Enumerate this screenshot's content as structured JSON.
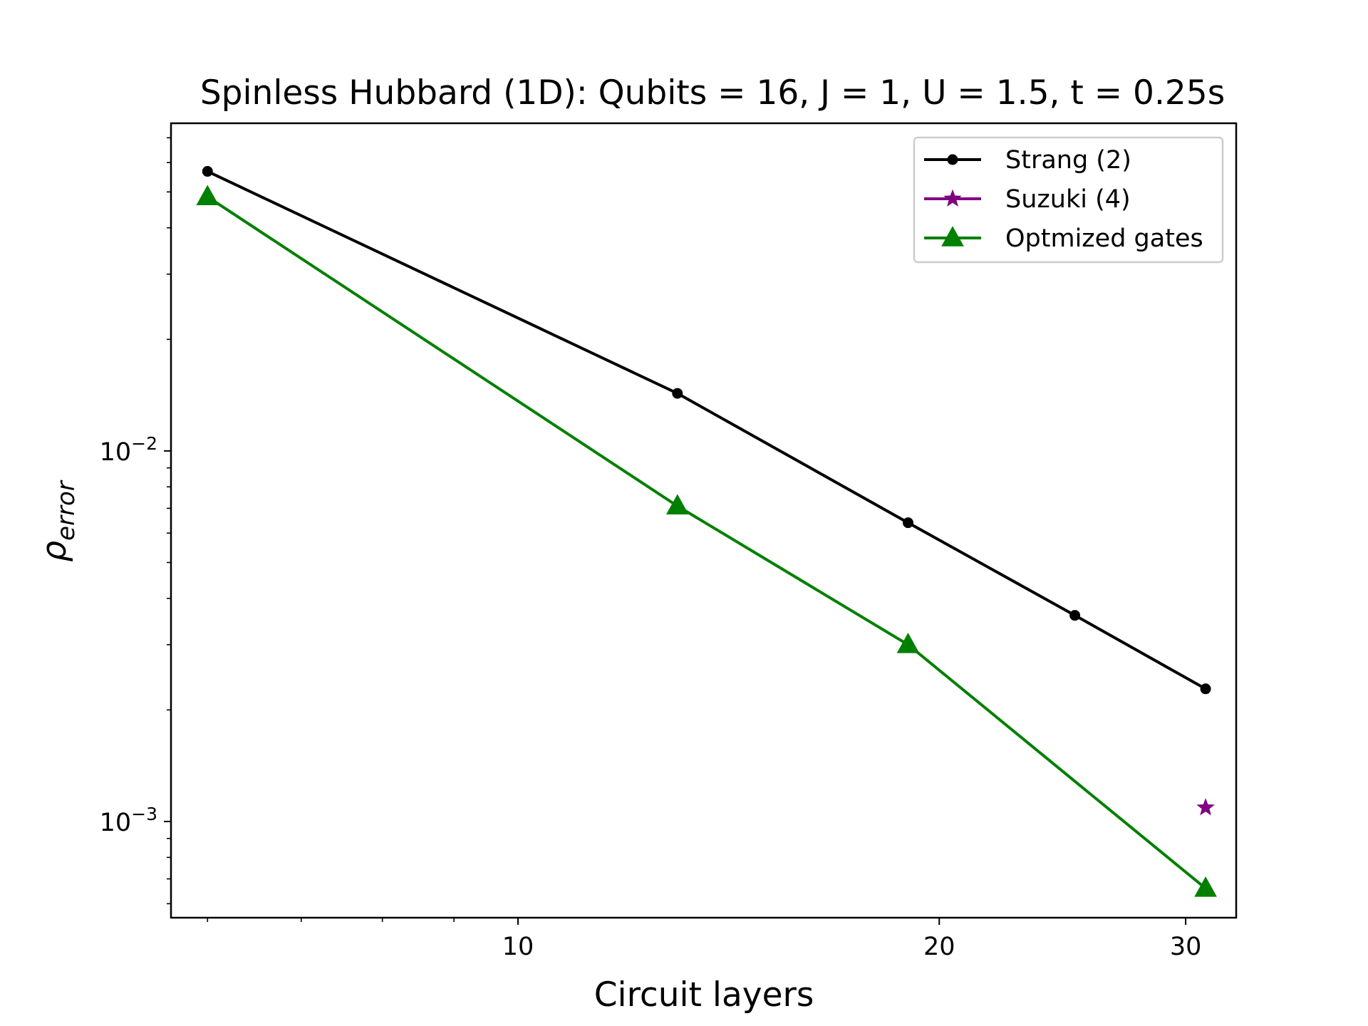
{
  "chart_data": {
    "type": "line",
    "title": "Spinless Hubbard (1D): Qubits = 16, J = 1, U = 1.5, t = 0.25s",
    "xlabel": "Circuit layers",
    "ylabel_base": "ρ",
    "ylabel_sub": "error",
    "xscale": "log",
    "yscale": "log",
    "xlim": [
      5.65,
      32.6
    ],
    "ylim": [
      0.00055,
      0.0766
    ],
    "x_ticks": [
      {
        "value": 10,
        "label": "10"
      },
      {
        "value": 20,
        "label": "20"
      },
      {
        "value": 30,
        "label": "30"
      }
    ],
    "x_minor_ticks": [
      6,
      7,
      8,
      9
    ],
    "y_ticks": [
      {
        "value": 0.01,
        "base": "10",
        "exp": "−2"
      },
      {
        "value": 0.001,
        "base": "10",
        "exp": "−3"
      }
    ],
    "y_minor_ticks": [
      0.0006,
      0.0007,
      0.0008,
      0.0009,
      0.002,
      0.003,
      0.004,
      0.005,
      0.006,
      0.007,
      0.008,
      0.009,
      0.02,
      0.03,
      0.04,
      0.05,
      0.06,
      0.07
    ],
    "grid": false,
    "legend_position": "top-right",
    "series": [
      {
        "name": "Strang (2)",
        "color": "#000000",
        "marker": "circle",
        "line": true,
        "points": [
          [
            6,
            0.0568
          ],
          [
            13,
            0.0143
          ],
          [
            19,
            0.0064
          ],
          [
            25,
            0.0036
          ],
          [
            31,
            0.00228
          ]
        ]
      },
      {
        "name": "Suzuki (4)",
        "color": "#800080",
        "marker": "star",
        "line": true,
        "points": [
          [
            31,
            0.00109
          ]
        ]
      },
      {
        "name": "Optmized gates",
        "color": "#008000",
        "marker": "triangle",
        "line": true,
        "points": [
          [
            6,
            0.0485
          ],
          [
            13,
            0.0071
          ],
          [
            19,
            0.003
          ],
          [
            31,
            0.00066
          ]
        ]
      }
    ]
  }
}
